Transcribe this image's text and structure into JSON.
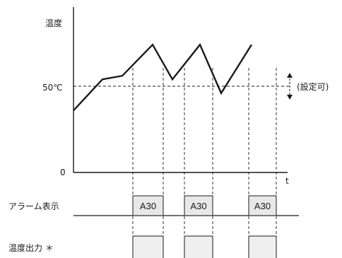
{
  "labels": {
    "y_axis": "温度",
    "threshold": "50℃",
    "zero": "0",
    "x_axis": "t",
    "settable": "(設定可)",
    "alarm_row": "アラーム表示",
    "output_row": "温度出力 ＊"
  },
  "alarm_code": "A30",
  "chart_data": {
    "type": "line",
    "title": "",
    "xlabel": "t",
    "ylabel": "温度",
    "threshold": 50,
    "series": [
      {
        "x": [
          0,
          41,
          69,
          112,
          140,
          179,
          209,
          252
        ],
        "y": [
          43,
          52,
          53,
          62,
          52,
          62,
          48,
          62
        ]
      }
    ],
    "pulses": [
      [
        84,
        127
      ],
      [
        157,
        197
      ],
      [
        248,
        287
      ]
    ]
  }
}
